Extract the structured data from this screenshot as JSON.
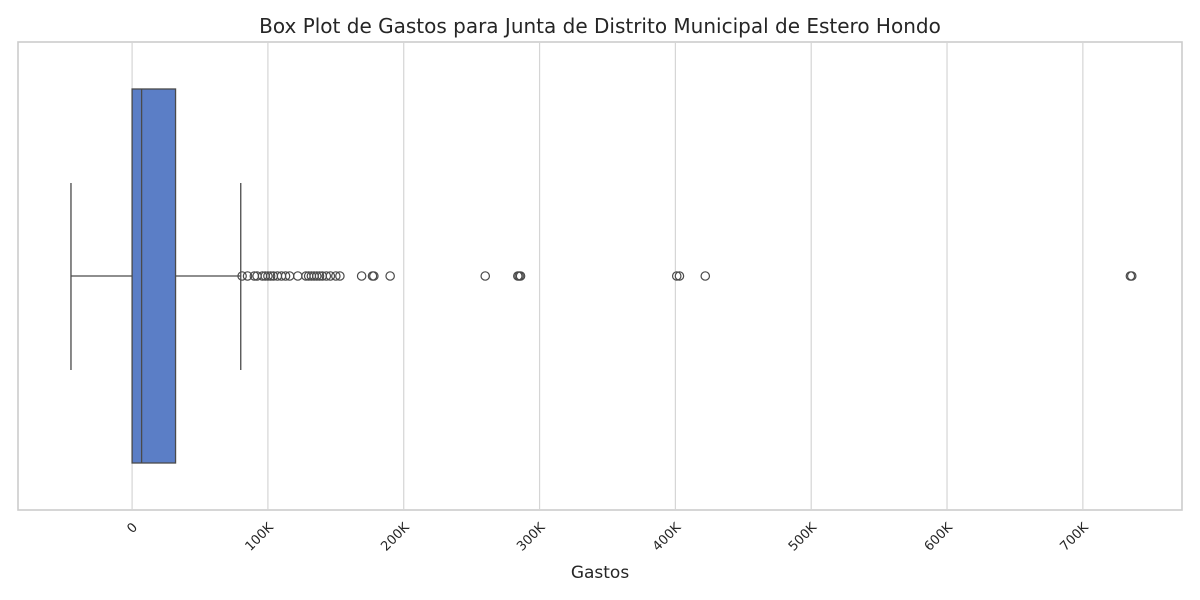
{
  "chart_data": {
    "type": "box",
    "orientation": "horizontal",
    "title": "Box Plot de Gastos para Junta de Distrito Municipal de Estero Hondo",
    "xlabel": "Gastos",
    "ylabel": "",
    "xlim": [
      -84000,
      773000
    ],
    "xticks": [
      {
        "value": 0,
        "label": "0"
      },
      {
        "value": 100000,
        "label": "100K"
      },
      {
        "value": 200000,
        "label": "200K"
      },
      {
        "value": 300000,
        "label": "300K"
      },
      {
        "value": 400000,
        "label": "400K"
      },
      {
        "value": 500000,
        "label": "500K"
      },
      {
        "value": 600000,
        "label": "600K"
      },
      {
        "value": 700000,
        "label": "700K"
      }
    ],
    "tick_rotation": 45,
    "grid": "vertical",
    "box_color": "#5b7ec6",
    "box": {
      "whisker_low": -45000,
      "q1": 0,
      "median": 7000,
      "q3": 32000,
      "whisker_high": 80000
    },
    "outliers": [
      81000,
      85000,
      90000,
      92000,
      96000,
      98000,
      100000,
      102000,
      104000,
      107000,
      110000,
      113000,
      116000,
      122000,
      128000,
      130000,
      132000,
      134000,
      136000,
      138000,
      140000,
      143000,
      146000,
      150000,
      153000,
      169000,
      177000,
      178000,
      190000,
      260000,
      284000,
      285000,
      286000,
      401000,
      403000,
      422000,
      735000,
      736000
    ]
  }
}
